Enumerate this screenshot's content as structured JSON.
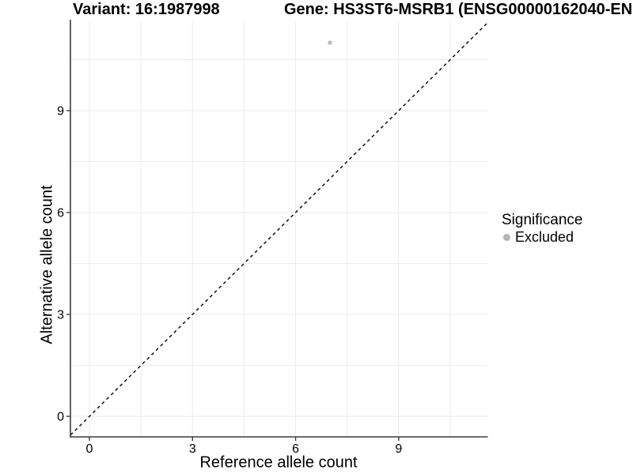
{
  "chart_data": {
    "type": "scatter",
    "variant_title": "Variant: 16:1987998",
    "gene_title": "Gene: HS3ST6-MSRB1 (ENSG00000162040-EN",
    "xlabel": "Reference allele count",
    "ylabel": "Alternative allele count",
    "xticks": [
      0,
      3,
      6,
      9
    ],
    "yticks": [
      0,
      3,
      6,
      9
    ],
    "xlim": [
      -0.55,
      11.6
    ],
    "ylim": [
      -0.6,
      11.63
    ],
    "grid_on": true,
    "gridline_positions": [
      0,
      1.5,
      3,
      4.5,
      6,
      7.5,
      9,
      10.5
    ],
    "points": [
      {
        "x": 7,
        "y": 11,
        "series": "Excluded"
      }
    ],
    "identity_line": {
      "equation": "y = x",
      "style": "dashed",
      "color": "#000000"
    },
    "legend": {
      "title": "Significance",
      "position": "right",
      "items": [
        {
          "label": "Excluded",
          "color": "#b5b5b5"
        }
      ]
    },
    "style": {
      "point_color": "#bdbdbd",
      "point_radius_px": 2.8,
      "grid_color": "#ebebeb",
      "axis_color": "#3c3c3c",
      "tick_label_color": "#000000"
    }
  }
}
